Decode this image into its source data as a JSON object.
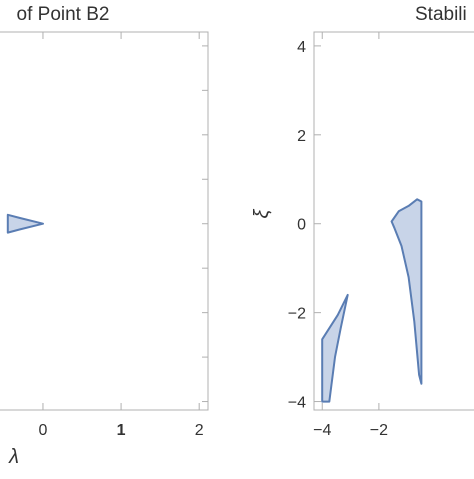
{
  "chart_data": [
    {
      "type": "area",
      "title": "of Point B2",
      "xlabel": "λ",
      "ylabel": "",
      "xlim": [
        -0.55,
        2.1
      ],
      "ylim": [
        -4.1,
        4.2
      ],
      "x_ticks": [
        {
          "value": 0,
          "label": "0",
          "bold": false
        },
        {
          "value": 1,
          "label": "1",
          "bold": true
        },
        {
          "value": 2,
          "label": "2",
          "bold": false
        }
      ],
      "y_ticks": [],
      "regions": [
        {
          "name": "",
          "points": [
            [
              -0.45,
              0.2
            ],
            [
              -0.3,
              0.13
            ],
            [
              0,
              0
            ],
            [
              -0.3,
              -0.13
            ],
            [
              -0.45,
              -0.2
            ]
          ]
        }
      ],
      "fill_color": "#c8d4e8",
      "edge_color": "#5a7db3",
      "frame_color": "#b0b0b0",
      "grid": false
    },
    {
      "type": "area",
      "title": "Stabili",
      "xlabel": "",
      "ylabel": "ξ",
      "xlim": [
        -4.15,
        2.7
      ],
      "ylim": [
        -4.1,
        4.2
      ],
      "x_ticks": [
        {
          "value": -4,
          "label": "−4",
          "bold": false
        },
        {
          "value": -2,
          "label": "−2",
          "bold": false
        }
      ],
      "y_ticks": [
        {
          "value": 4,
          "label": "4"
        },
        {
          "value": 2,
          "label": "2"
        },
        {
          "value": 0,
          "label": "0"
        },
        {
          "value": -2,
          "label": "−2"
        },
        {
          "value": -4,
          "label": "−4"
        }
      ],
      "regions": [
        {
          "name": "",
          "points": [
            [
              -4.0,
              -2.6
            ],
            [
              -3.45,
              -2.05
            ],
            [
              -3.1,
              -1.6
            ],
            [
              -3.35,
              -2.35
            ],
            [
              -3.55,
              -3.0
            ],
            [
              -3.75,
              -4.0
            ],
            [
              -4.0,
              -4.0
            ]
          ]
        },
        {
          "name": "",
          "points": [
            [
              -1.55,
              0.05
            ],
            [
              -1.3,
              0.28
            ],
            [
              -0.95,
              0.4
            ],
            [
              -0.65,
              0.55
            ],
            [
              -0.5,
              0.5
            ],
            [
              -0.5,
              -3.6
            ],
            [
              -0.58,
              -3.4
            ],
            [
              -0.75,
              -2.2
            ],
            [
              -0.95,
              -1.2
            ],
            [
              -1.2,
              -0.5
            ],
            [
              -1.45,
              -0.1
            ]
          ]
        }
      ],
      "fill_color": "#c8d4e8",
      "edge_color": "#5a7db3",
      "frame_color": "#b0b0b0",
      "grid": false
    }
  ]
}
